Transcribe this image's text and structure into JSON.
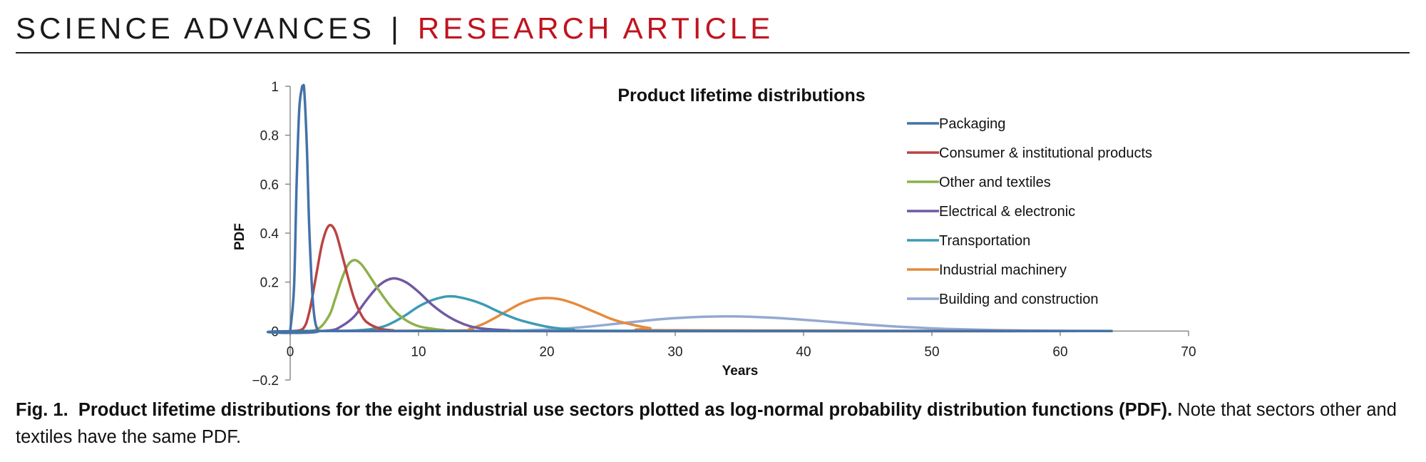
{
  "header": {
    "journal": "SCIENCE ADVANCES",
    "separator": "|",
    "section": "RESEARCH ARTICLE",
    "accent_color": "#c0141f"
  },
  "caption": {
    "label": "Fig. 1.",
    "bold_text": "Product lifetime distributions for the eight industrial use sectors plotted as log-normal probability distribution functions (PDF).",
    "rest_text": "Note that sectors other and textiles have the same PDF."
  },
  "chart_data": {
    "type": "line",
    "title": "Product lifetime distributions",
    "xlabel": "Years",
    "ylabel": "PDF",
    "xlim": [
      0,
      70
    ],
    "ylim": [
      -0.2,
      1
    ],
    "x_ticks": [
      "0",
      "10",
      "20",
      "30",
      "40",
      "50",
      "60",
      "70"
    ],
    "y_ticks": [
      "−0.2",
      "0",
      "0.2",
      "0.4",
      "0.6",
      "0.8",
      "1"
    ],
    "grid": false,
    "legend_position": "top-right",
    "series": [
      {
        "name": "Packaging",
        "color": "#4472a8",
        "x": [
          0,
          0.3,
          0.5,
          0.7,
          0.9,
          1.0,
          1.1,
          1.3,
          1.5,
          1.8,
          2.2,
          3,
          64
        ],
        "y": [
          0,
          0.18,
          0.6,
          0.9,
          0.99,
          1.0,
          0.98,
          0.75,
          0.4,
          0.1,
          0.0,
          0,
          0
        ]
      },
      {
        "name": "Consumer & institutional products",
        "color": "#b84442",
        "x": [
          0,
          1,
          1.5,
          2,
          2.5,
          3,
          3.5,
          4,
          4.5,
          5,
          5.5,
          6,
          7,
          8,
          10,
          64
        ],
        "y": [
          0,
          0.01,
          0.08,
          0.22,
          0.36,
          0.43,
          0.41,
          0.32,
          0.22,
          0.13,
          0.07,
          0.035,
          0.01,
          0.003,
          0,
          0
        ]
      },
      {
        "name": "Other and textiles",
        "color": "#8db14a",
        "x": [
          0,
          2,
          3,
          3.5,
          4,
          4.5,
          5,
          5.5,
          6,
          7,
          8,
          9,
          10,
          11,
          12,
          14,
          64
        ],
        "y": [
          0,
          0.005,
          0.06,
          0.13,
          0.21,
          0.27,
          0.29,
          0.275,
          0.24,
          0.16,
          0.09,
          0.045,
          0.02,
          0.01,
          0.004,
          0,
          0
        ]
      },
      {
        "name": "Electrical & electronic",
        "color": "#7159a2",
        "x": [
          0,
          3,
          4,
          5,
          6,
          7,
          8,
          9,
          10,
          11,
          12,
          13,
          14,
          15,
          17,
          20,
          64
        ],
        "y": [
          0,
          0.002,
          0.02,
          0.06,
          0.13,
          0.19,
          0.215,
          0.2,
          0.16,
          0.11,
          0.07,
          0.04,
          0.02,
          0.01,
          0.003,
          0,
          0
        ]
      },
      {
        "name": "Transportation",
        "color": "#3d9bb5",
        "x": [
          0,
          5,
          7,
          8,
          9,
          10,
          11,
          12,
          12.5,
          13,
          14,
          15,
          16,
          17,
          18,
          20,
          22,
          25,
          64
        ],
        "y": [
          0,
          0.002,
          0.015,
          0.035,
          0.065,
          0.1,
          0.125,
          0.14,
          0.142,
          0.14,
          0.128,
          0.11,
          0.085,
          0.062,
          0.043,
          0.018,
          0.006,
          0.001,
          0
        ]
      },
      {
        "name": "Industrial machinery",
        "color": "#e68a3b",
        "x": [
          0,
          13,
          14,
          15,
          16,
          17,
          18,
          19,
          20,
          21,
          22,
          23,
          24,
          25,
          26,
          28,
          30,
          64
        ],
        "y": [
          0,
          0.002,
          0.01,
          0.028,
          0.055,
          0.085,
          0.113,
          0.13,
          0.135,
          0.13,
          0.115,
          0.094,
          0.072,
          0.05,
          0.034,
          0.012,
          0.003,
          0
        ]
      },
      {
        "name": "Building and construction",
        "color": "#93a9d2",
        "x": [
          0,
          15,
          20,
          23,
          26,
          29,
          32,
          34,
          36,
          39,
          42,
          45,
          48,
          51,
          55,
          60,
          64
        ],
        "y": [
          0,
          0.0005,
          0.006,
          0.017,
          0.033,
          0.049,
          0.058,
          0.06,
          0.058,
          0.05,
          0.038,
          0.026,
          0.016,
          0.009,
          0.004,
          0.001,
          0.0005
        ]
      }
    ]
  }
}
